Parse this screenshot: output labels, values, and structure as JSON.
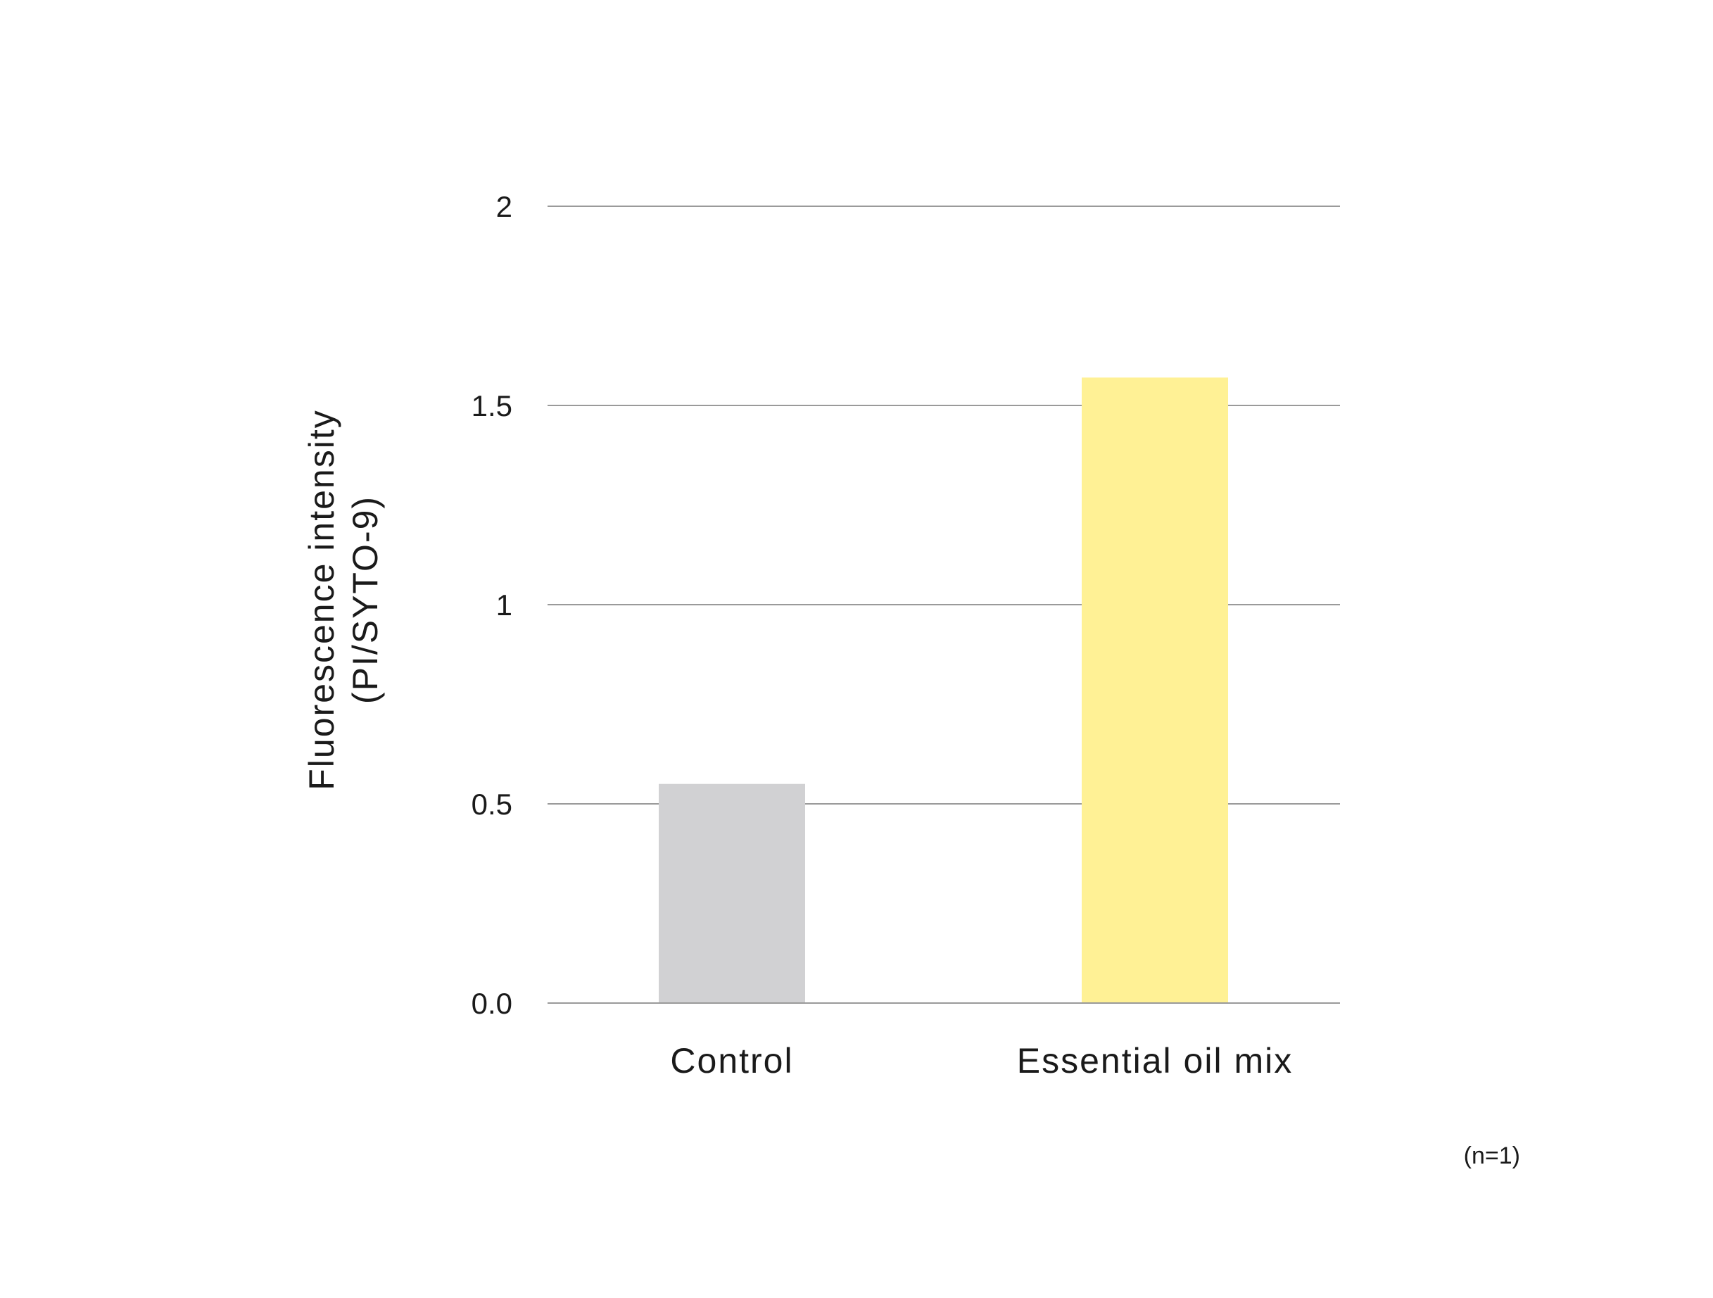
{
  "chart_data": {
    "type": "bar",
    "title": "",
    "xlabel": "",
    "ylabel_lines": [
      "Fluorescence intensity",
      "(PI/SYTO-9)"
    ],
    "categories": [
      "Control",
      "Essential oil mix"
    ],
    "values": [
      0.55,
      1.57
    ],
    "bar_colors": [
      "#d1d1d3",
      "#fff195"
    ],
    "ylim": [
      0,
      2
    ],
    "yticks": [
      {
        "value": 0,
        "label": "0.0"
      },
      {
        "value": 0.5,
        "label": "0.5"
      },
      {
        "value": 1,
        "label": "1"
      },
      {
        "value": 1.5,
        "label": "1.5"
      },
      {
        "value": 2,
        "label": "2"
      }
    ],
    "grid": true,
    "grid_color": "#9a9a9a",
    "legend": "none",
    "note": "(n=1)"
  }
}
